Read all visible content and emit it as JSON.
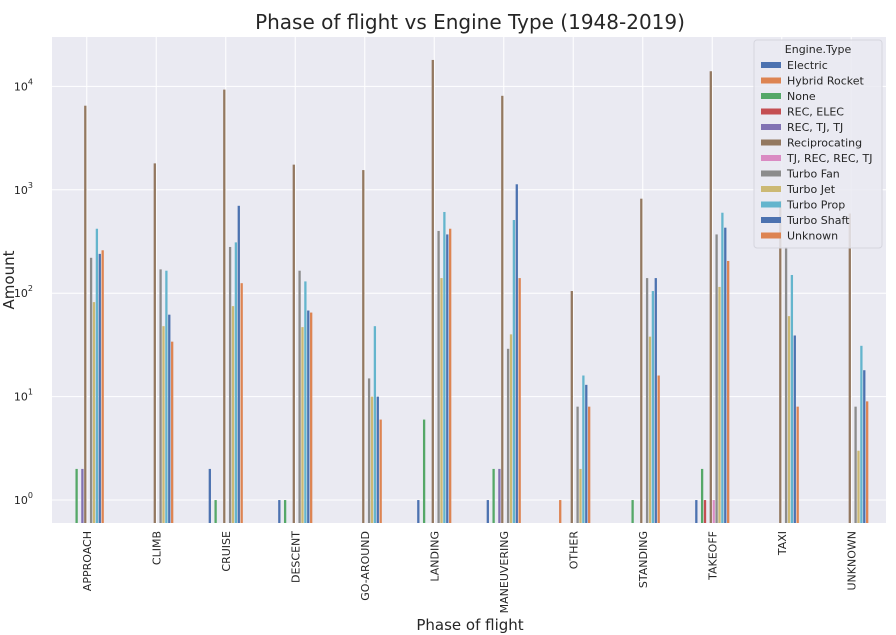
{
  "chart_data": {
    "type": "bar",
    "title": "Phase of flight vs Engine Type (1948-2019)",
    "xlabel": "Phase of flight",
    "ylabel": "Amount",
    "yscale": "log",
    "ylim": [
      0.6,
      30000
    ],
    "grid": true,
    "legend_title": "Engine.Type",
    "legend_position": "top-right",
    "y_ticks": [
      {
        "value": 1,
        "base": "10",
        "exp": "0"
      },
      {
        "value": 10,
        "base": "10",
        "exp": "1"
      },
      {
        "value": 100,
        "base": "10",
        "exp": "2"
      },
      {
        "value": 1000,
        "base": "10",
        "exp": "3"
      },
      {
        "value": 10000,
        "base": "10",
        "exp": "4"
      }
    ],
    "categories": [
      "APPROACH",
      "CLIMB",
      "CRUISE",
      "DESCENT",
      "GO-AROUND",
      "LANDING",
      "MANEUVERING",
      "OTHER",
      "STANDING",
      "TAKEOFF",
      "TAXI",
      "UNKNOWN"
    ],
    "series": [
      {
        "name": "Electric",
        "color": "#4c72b0",
        "values": [
          null,
          null,
          2,
          1,
          null,
          1,
          1,
          null,
          null,
          1,
          null,
          null
        ]
      },
      {
        "name": "Hybrid Rocket",
        "color": "#dd8452",
        "values": [
          null,
          null,
          null,
          null,
          null,
          null,
          null,
          1,
          null,
          null,
          null,
          null
        ]
      },
      {
        "name": "None",
        "color": "#55a868",
        "values": [
          2,
          null,
          1,
          1,
          null,
          6,
          2,
          null,
          1,
          2,
          null,
          null
        ]
      },
      {
        "name": "REC, ELEC",
        "color": "#c44e52",
        "values": [
          null,
          null,
          null,
          null,
          null,
          null,
          null,
          null,
          null,
          1,
          null,
          null
        ]
      },
      {
        "name": "REC, TJ, TJ",
        "color": "#8172b3",
        "values": [
          2,
          null,
          null,
          null,
          null,
          null,
          2,
          null,
          null,
          null,
          null,
          null
        ]
      },
      {
        "name": "Reciprocating",
        "color": "#937860",
        "values": [
          6500,
          1800,
          9300,
          1750,
          1550,
          18000,
          8100,
          105,
          820,
          14000,
          780,
          590
        ]
      },
      {
        "name": "TJ, REC, REC, TJ",
        "color": "#da8bc3",
        "values": [
          null,
          null,
          null,
          null,
          null,
          null,
          null,
          null,
          null,
          1,
          null,
          null
        ]
      },
      {
        "name": "Turbo Fan",
        "color": "#8c8c8c",
        "values": [
          220,
          170,
          280,
          165,
          15,
          400,
          29,
          8,
          140,
          370,
          280,
          8
        ]
      },
      {
        "name": "Turbo Jet",
        "color": "#ccb974",
        "values": [
          82,
          48,
          75,
          47,
          10,
          140,
          40,
          2,
          38,
          115,
          60,
          3
        ]
      },
      {
        "name": "Turbo Prop",
        "color": "#64b5cd",
        "values": [
          420,
          165,
          310,
          130,
          48,
          610,
          510,
          16,
          105,
          600,
          150,
          31
        ]
      },
      {
        "name": "Turbo Shaft",
        "color": "#4c72b0",
        "values": [
          240,
          62,
          700,
          68,
          10,
          370,
          1130,
          13,
          140,
          430,
          39,
          18
        ]
      },
      {
        "name": "Unknown",
        "color": "#dd8452",
        "values": [
          260,
          34,
          125,
          65,
          6,
          420,
          140,
          8,
          16,
          205,
          8,
          9
        ]
      }
    ]
  }
}
